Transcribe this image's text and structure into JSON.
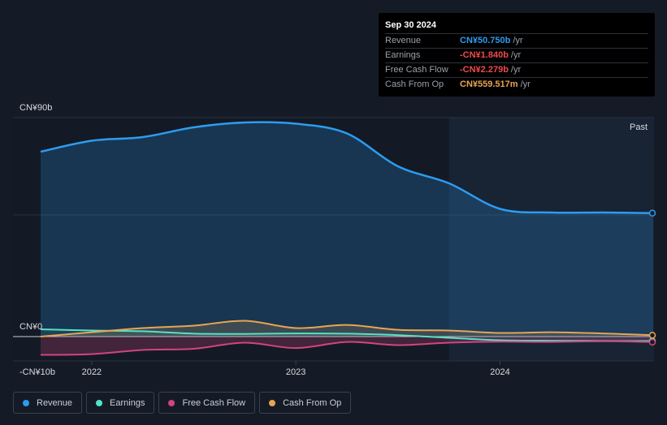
{
  "tooltip": {
    "date": "Sep 30 2024",
    "rows": [
      {
        "label": "Revenue",
        "value": "CN¥50.750b",
        "unit": "/yr",
        "color": "#2d9cf0"
      },
      {
        "label": "Earnings",
        "value": "-CN¥1.840b",
        "unit": "/yr",
        "color": "#f04a4a"
      },
      {
        "label": "Free Cash Flow",
        "value": "-CN¥2.279b",
        "unit": "/yr",
        "color": "#f04a4a"
      },
      {
        "label": "Cash From Op",
        "value": "CN¥559.517m",
        "unit": "/yr",
        "color": "#e8a552"
      }
    ]
  },
  "past_label": "Past",
  "legend": [
    {
      "label": "Revenue",
      "color": "#2d9cf0"
    },
    {
      "label": "Earnings",
      "color": "#57e0c8"
    },
    {
      "label": "Free Cash Flow",
      "color": "#d0457f"
    },
    {
      "label": "Cash From Op",
      "color": "#e8a552"
    }
  ],
  "chart_data": {
    "type": "area",
    "y_tick_labels": [
      "CN¥90b",
      "CN¥0",
      "-CN¥10b"
    ],
    "x_tick_labels": [
      "2022",
      "2023",
      "2024"
    ],
    "ylim": [
      -10,
      90
    ],
    "past_region_start": 2023.75,
    "grid": true,
    "series": [
      {
        "name": "Revenue",
        "color": "#2d9cf0",
        "x": [
          2021.75,
          2022.0,
          2022.25,
          2022.5,
          2022.75,
          2023.0,
          2023.25,
          2023.5,
          2023.75,
          2024.0,
          2024.25,
          2024.5,
          2024.75
        ],
        "values": [
          76,
          80.5,
          82,
          86,
          88,
          87.5,
          83.5,
          70,
          63,
          52.5,
          51,
          51,
          50.75
        ]
      },
      {
        "name": "Earnings",
        "color": "#57e0c8",
        "x": [
          2021.75,
          2022.0,
          2022.25,
          2022.5,
          2022.75,
          2023.0,
          2023.25,
          2023.5,
          2023.75,
          2024.0,
          2024.25,
          2024.5,
          2024.75
        ],
        "values": [
          3,
          2.5,
          2.2,
          1.2,
          1.1,
          1.3,
          1.2,
          0.6,
          -0.5,
          -1.5,
          -1.7,
          -1.8,
          -1.84
        ]
      },
      {
        "name": "Free Cash Flow",
        "color": "#d0457f",
        "x": [
          2021.75,
          2022.0,
          2022.25,
          2022.5,
          2022.75,
          2023.0,
          2023.25,
          2023.5,
          2023.75,
          2024.0,
          2024.25,
          2024.5,
          2024.75
        ],
        "values": [
          -7.5,
          -7.2,
          -5.5,
          -5,
          -2.5,
          -4.7,
          -2.2,
          -3.5,
          -2.5,
          -2.1,
          -2.2,
          -1.9,
          -2.279
        ]
      },
      {
        "name": "Cash From Op",
        "color": "#e8a552",
        "x": [
          2021.75,
          2022.0,
          2022.25,
          2022.5,
          2022.75,
          2023.0,
          2023.25,
          2023.5,
          2023.75,
          2024.0,
          2024.25,
          2024.5,
          2024.75
        ],
        "values": [
          0,
          1.8,
          3.5,
          4.5,
          6.5,
          3.5,
          4.8,
          2.8,
          2.5,
          1.5,
          1.8,
          1.3,
          0.56
        ]
      }
    ]
  }
}
